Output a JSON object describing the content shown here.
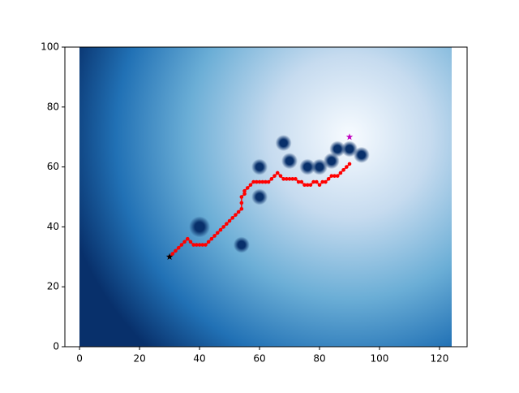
{
  "chart_data": {
    "type": "scatter",
    "xlim": [
      -4.9,
      129.2
    ],
    "ylim": [
      0,
      100
    ],
    "xticks": [
      0,
      20,
      40,
      60,
      80,
      100,
      120
    ],
    "yticks": [
      0,
      20,
      40,
      60,
      80,
      100
    ],
    "obstacles": {
      "color": "#08306b",
      "x": [
        40,
        54,
        60,
        60,
        68,
        70,
        76,
        80,
        84,
        86,
        90,
        94
      ],
      "y": [
        40,
        34,
        50,
        60,
        68,
        62,
        60,
        60,
        62,
        66,
        66,
        64
      ]
    },
    "path": {
      "color": "#ff0000",
      "x": [
        30,
        31,
        32,
        33,
        34,
        35,
        36,
        37,
        38,
        39,
        40,
        41,
        42,
        43,
        44,
        45,
        46,
        47,
        48,
        49,
        50,
        51,
        52,
        53,
        54,
        54,
        54,
        55,
        55,
        56,
        57,
        58,
        59,
        60,
        61,
        62,
        63,
        64,
        65,
        66,
        67,
        68,
        69,
        70,
        71,
        72,
        73,
        74,
        75,
        76,
        77,
        78,
        79,
        80,
        81,
        82,
        83,
        84,
        85,
        86,
        87,
        88,
        89,
        90
      ],
      "y": [
        30,
        31,
        32,
        33,
        34,
        35,
        36,
        35,
        34,
        34,
        34,
        34,
        34,
        35,
        36,
        37,
        38,
        39,
        40,
        41,
        42,
        43,
        44,
        45,
        46,
        48,
        50,
        51,
        52,
        53,
        54,
        55,
        55,
        55,
        55,
        55,
        55,
        56,
        57,
        58,
        57,
        56,
        56,
        56,
        56,
        56,
        55,
        55,
        54,
        54,
        54,
        55,
        55,
        54,
        55,
        55,
        56,
        57,
        57,
        57,
        58,
        59,
        60,
        61
      ]
    },
    "start": {
      "x": 30,
      "y": 30,
      "color": "#000000"
    },
    "goal": {
      "x": 90,
      "y": 70,
      "color": "#bf00bf"
    }
  }
}
